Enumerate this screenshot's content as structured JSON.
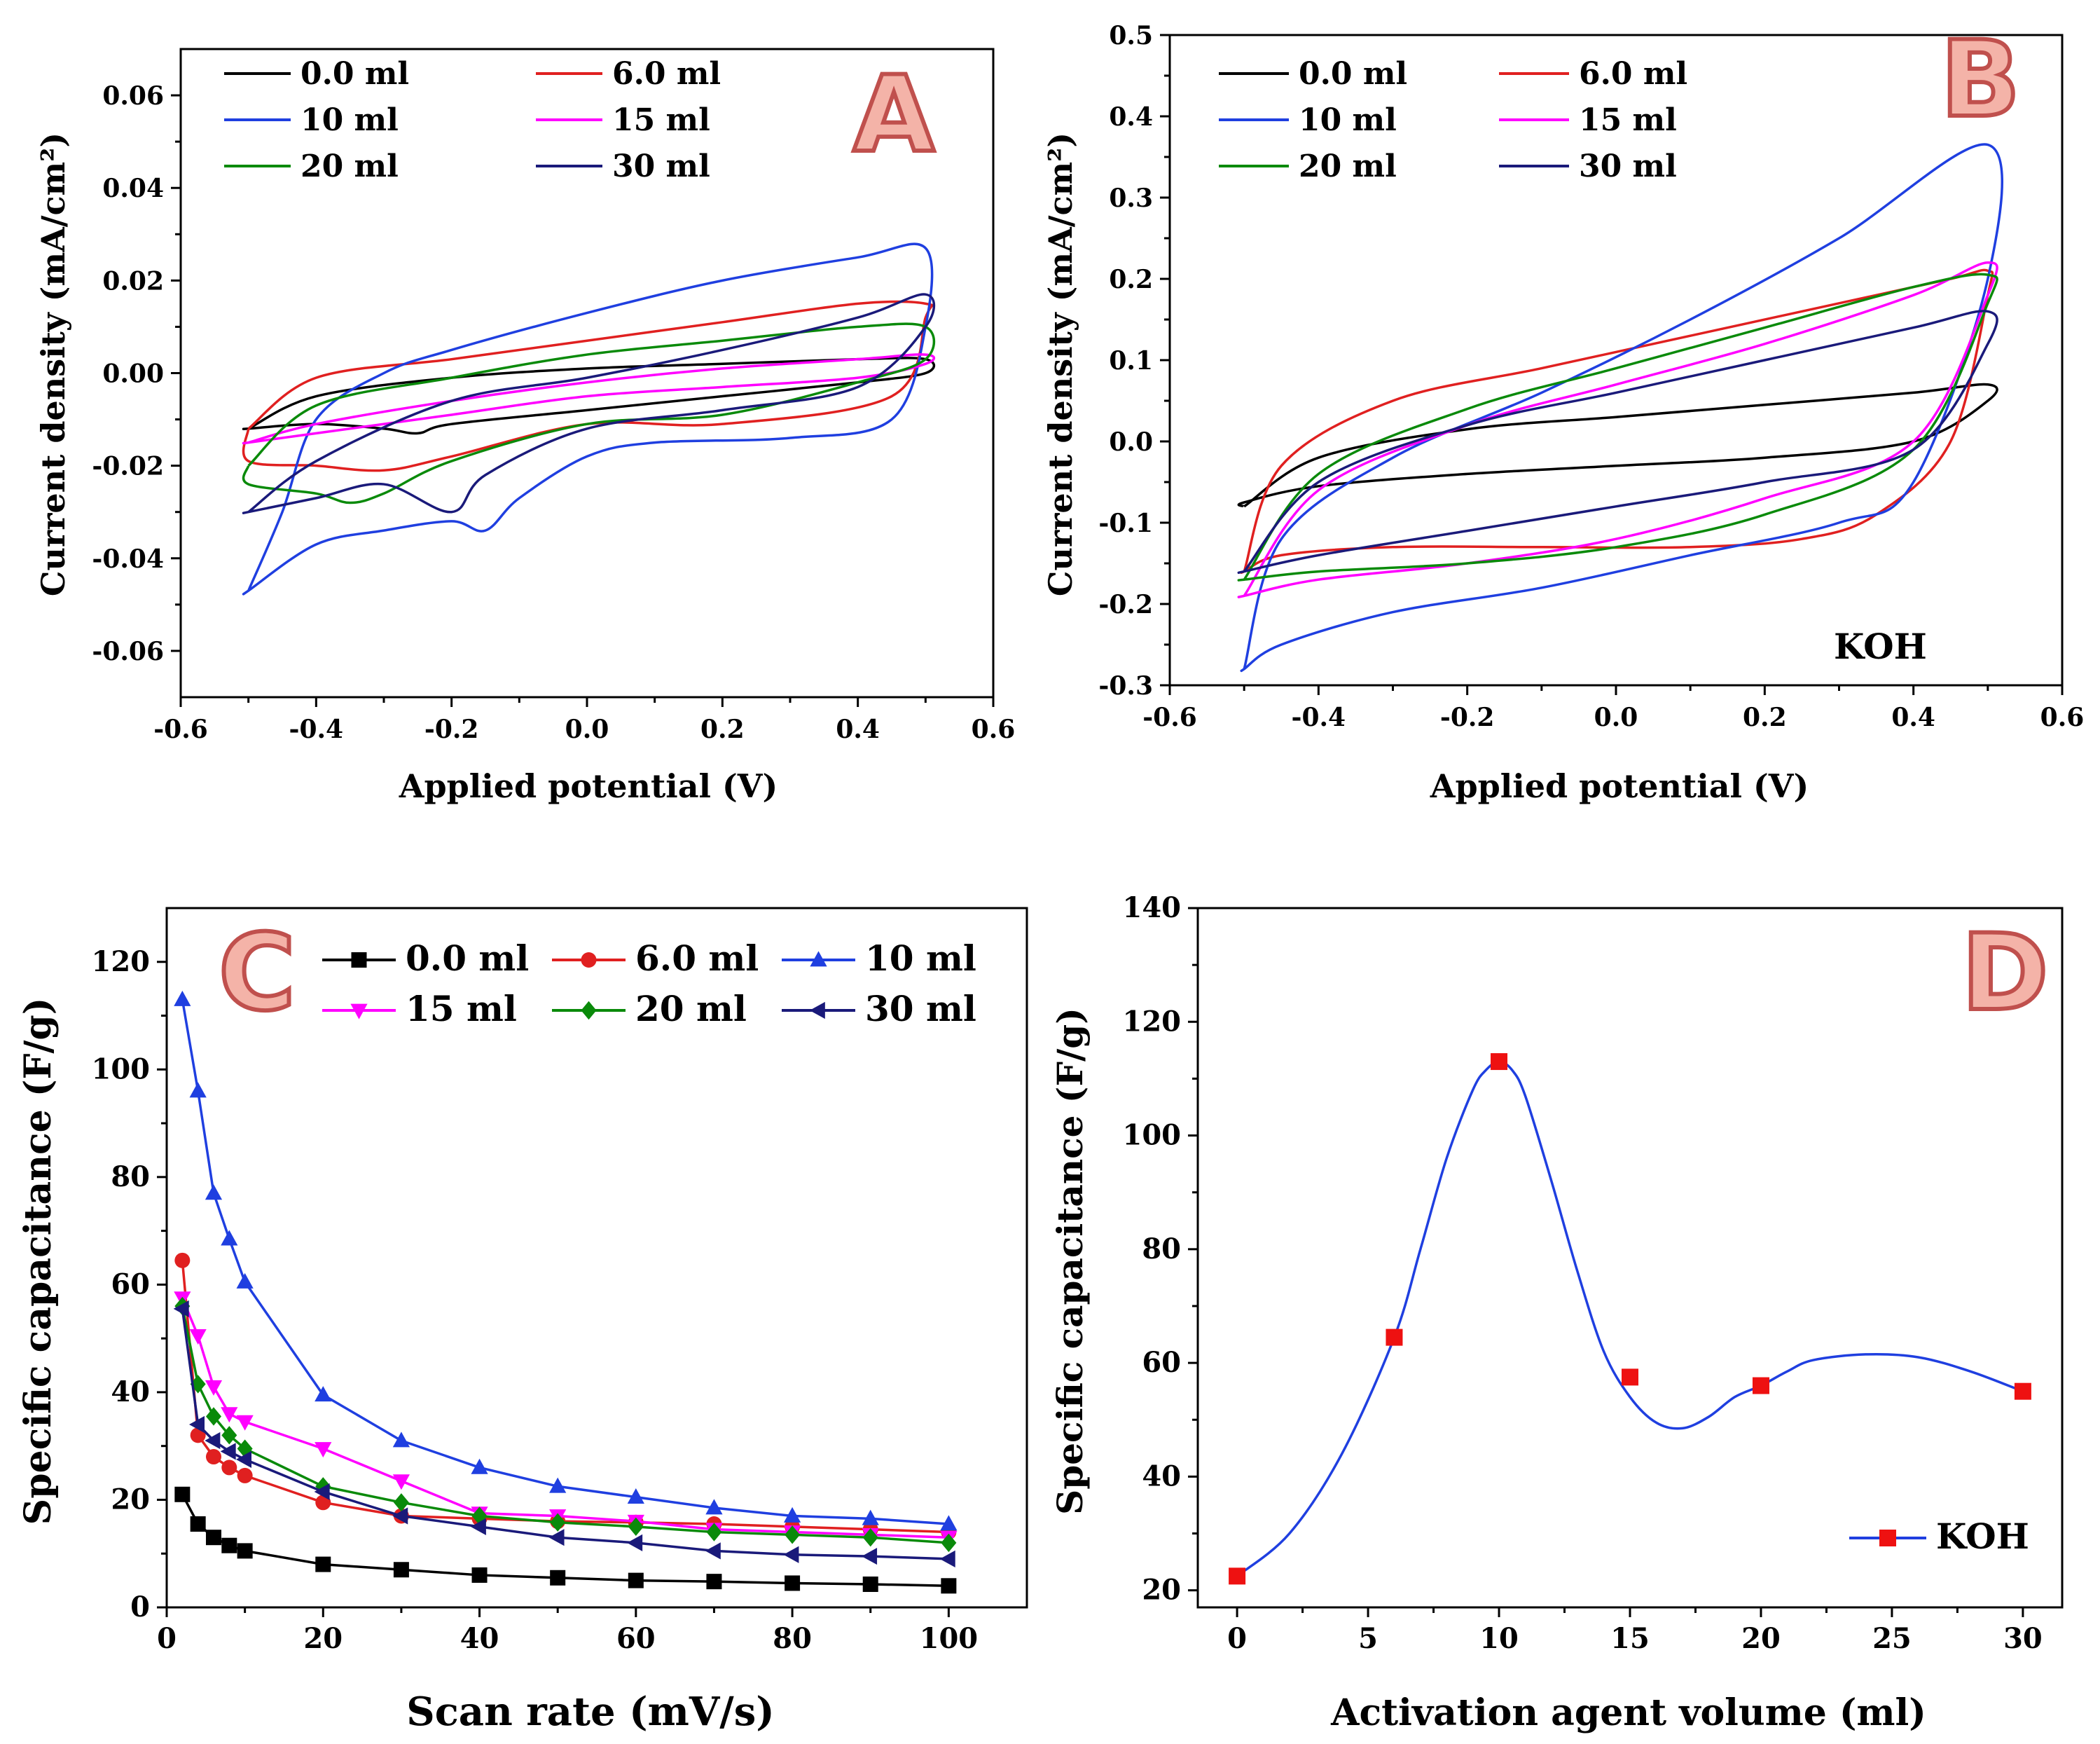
{
  "colors": {
    "0.0 ml": "#000000",
    "6.0 ml": "#e02020",
    "10 ml": "#1f3fe0",
    "15 ml": "#ff00ff",
    "20 ml": "#0a8a0a",
    "30 ml": "#1a1a7a",
    "D_line": "#1f3fe0",
    "D_marker": "#ee1111"
  },
  "chart_data": [
    {
      "id": "A",
      "type": "line",
      "panel_label": "A",
      "xlabel": "Applied potential (V)",
      "ylabel": "Current density (mA/cm²)",
      "xlim": [
        -0.6,
        0.6
      ],
      "ylim": [
        -0.07,
        0.07
      ],
      "xticks": [
        -0.6,
        -0.4,
        -0.2,
        0.0,
        0.2,
        0.4,
        0.6
      ],
      "xtick_labels": [
        "-0.6",
        "-0.4",
        "-0.2",
        "0.0",
        "0.2",
        "0.4",
        "0.6"
      ],
      "yticks": [
        -0.06,
        -0.04,
        -0.02,
        0.0,
        0.02,
        0.04,
        0.06
      ],
      "ytick_labels": [
        "-0.06",
        "-0.04",
        "-0.02",
        "0.00",
        "0.02",
        "0.04",
        "0.06"
      ],
      "legend": [
        "0.0 ml",
        "6.0 ml",
        "10 ml",
        "15 ml",
        "20 ml",
        "30 ml"
      ],
      "series": [
        {
          "name": "0.0 ml",
          "x": [
            -0.5,
            -0.4,
            -0.2,
            0.0,
            0.2,
            0.4,
            0.5,
            0.5,
            0.4,
            0.2,
            0.0,
            -0.2,
            -0.25,
            -0.3,
            -0.4,
            -0.5,
            -0.5
          ],
          "y": [
            -0.012,
            -0.005,
            -0.001,
            0.001,
            0.002,
            0.003,
            0.003,
            0.0,
            -0.002,
            -0.005,
            -0.008,
            -0.011,
            -0.013,
            -0.012,
            -0.011,
            -0.012,
            -0.012
          ]
        },
        {
          "name": "6.0 ml",
          "x": [
            -0.5,
            -0.4,
            -0.2,
            0.0,
            0.2,
            0.4,
            0.5,
            0.5,
            0.45,
            0.2,
            0.0,
            -0.2,
            -0.3,
            -0.4,
            -0.5,
            -0.5
          ],
          "y": [
            -0.012,
            -0.001,
            0.003,
            0.007,
            0.011,
            0.015,
            0.015,
            0.012,
            -0.005,
            -0.011,
            -0.011,
            -0.018,
            -0.021,
            -0.02,
            -0.019,
            -0.012
          ]
        },
        {
          "name": "10 ml",
          "x": [
            -0.5,
            -0.45,
            -0.4,
            -0.3,
            -0.2,
            0.0,
            0.2,
            0.4,
            0.5,
            0.5,
            0.45,
            0.3,
            0.1,
            0.0,
            -0.1,
            -0.15,
            -0.2,
            -0.3,
            -0.4,
            -0.5,
            -0.5
          ],
          "y": [
            -0.047,
            -0.03,
            -0.01,
            0.0,
            0.005,
            0.013,
            0.02,
            0.025,
            0.027,
            0.01,
            -0.01,
            -0.014,
            -0.015,
            -0.018,
            -0.027,
            -0.034,
            -0.032,
            -0.034,
            -0.037,
            -0.047,
            -0.047
          ]
        },
        {
          "name": "15 ml",
          "x": [
            -0.5,
            -0.4,
            -0.2,
            0.0,
            0.2,
            0.4,
            0.5,
            0.5,
            0.4,
            0.2,
            0.0,
            -0.2,
            -0.4,
            -0.5,
            -0.5
          ],
          "y": [
            -0.015,
            -0.011,
            -0.006,
            -0.002,
            0.001,
            0.003,
            0.004,
            0.002,
            -0.001,
            -0.003,
            -0.005,
            -0.009,
            -0.013,
            -0.015,
            -0.015
          ]
        },
        {
          "name": "20 ml",
          "x": [
            -0.5,
            -0.4,
            -0.2,
            0.0,
            0.2,
            0.4,
            0.5,
            0.5,
            0.4,
            0.2,
            0.0,
            -0.2,
            -0.3,
            -0.35,
            -0.4,
            -0.5,
            -0.5
          ],
          "y": [
            -0.02,
            -0.007,
            -0.001,
            0.004,
            0.007,
            0.01,
            0.01,
            0.003,
            -0.002,
            -0.009,
            -0.011,
            -0.019,
            -0.026,
            -0.028,
            -0.026,
            -0.024,
            -0.02
          ]
        },
        {
          "name": "30 ml",
          "x": [
            -0.5,
            -0.4,
            -0.2,
            0.0,
            0.2,
            0.4,
            0.5,
            0.5,
            0.4,
            0.2,
            0.0,
            -0.15,
            -0.2,
            -0.3,
            -0.4,
            -0.5,
            -0.5
          ],
          "y": [
            -0.03,
            -0.019,
            -0.006,
            -0.001,
            0.005,
            0.012,
            0.017,
            0.01,
            -0.003,
            -0.008,
            -0.012,
            -0.022,
            -0.03,
            -0.024,
            -0.027,
            -0.03,
            -0.03
          ]
        }
      ]
    },
    {
      "id": "B",
      "type": "line",
      "panel_label": "B",
      "annotation": "KOH",
      "xlabel": "Applied potential (V)",
      "ylabel": "Current density (mA/cm²)",
      "xlim": [
        -0.6,
        0.6
      ],
      "ylim": [
        -0.3,
        0.5
      ],
      "xticks": [
        -0.6,
        -0.4,
        -0.2,
        0.0,
        0.2,
        0.4,
        0.6
      ],
      "xtick_labels": [
        "-0.6",
        "-0.4",
        "-0.2",
        "0.0",
        "0.2",
        "0.4",
        "0.6"
      ],
      "yticks": [
        -0.3,
        -0.2,
        -0.1,
        0.0,
        0.1,
        0.2,
        0.3,
        0.4,
        0.5
      ],
      "ytick_labels": [
        "-0.3",
        "-0.2",
        "-0.1",
        "0.0",
        "0.1",
        "0.2",
        "0.3",
        "0.4",
        "0.5"
      ],
      "legend": [
        "0.0 ml",
        "6.0 ml",
        "10 ml",
        "15 ml",
        "20 ml",
        "30 ml"
      ],
      "series": [
        {
          "name": "0.0 ml",
          "x": [
            -0.5,
            -0.4,
            -0.2,
            0.0,
            0.2,
            0.4,
            0.5,
            0.5,
            0.4,
            0.2,
            0.0,
            -0.2,
            -0.4,
            -0.5,
            -0.5
          ],
          "y": [
            -0.08,
            -0.02,
            0.015,
            0.03,
            0.045,
            0.06,
            0.07,
            0.05,
            0.0,
            -0.02,
            -0.03,
            -0.04,
            -0.055,
            -0.075,
            -0.08
          ]
        },
        {
          "name": "6.0 ml",
          "x": [
            -0.5,
            -0.45,
            -0.3,
            -0.1,
            0.1,
            0.3,
            0.45,
            0.5,
            0.5,
            0.45,
            0.35,
            0.25,
            0.1,
            -0.1,
            -0.3,
            -0.45,
            -0.5,
            -0.5
          ],
          "y": [
            -0.16,
            -0.03,
            0.05,
            0.09,
            0.13,
            0.17,
            0.2,
            0.21,
            0.18,
            0.0,
            -0.09,
            -0.12,
            -0.13,
            -0.13,
            -0.13,
            -0.14,
            -0.16,
            -0.16
          ]
        },
        {
          "name": "10 ml",
          "x": [
            -0.5,
            -0.45,
            -0.3,
            -0.1,
            0.1,
            0.3,
            0.5,
            0.5,
            0.4,
            0.3,
            0.1,
            -0.1,
            -0.3,
            -0.45,
            -0.5,
            -0.5
          ],
          "y": [
            -0.28,
            -0.12,
            -0.02,
            0.06,
            0.15,
            0.25,
            0.365,
            0.2,
            -0.05,
            -0.1,
            -0.14,
            -0.18,
            -0.21,
            -0.25,
            -0.28,
            -0.28
          ]
        },
        {
          "name": "15 ml",
          "x": [
            -0.5,
            -0.4,
            -0.2,
            0.0,
            0.2,
            0.4,
            0.5,
            0.5,
            0.4,
            0.2,
            0.0,
            -0.2,
            -0.4,
            -0.5,
            -0.5
          ],
          "y": [
            -0.19,
            -0.06,
            0.02,
            0.07,
            0.12,
            0.18,
            0.22,
            0.18,
            0.0,
            -0.07,
            -0.12,
            -0.15,
            -0.17,
            -0.19,
            -0.19
          ]
        },
        {
          "name": "20 ml",
          "x": [
            -0.5,
            -0.4,
            -0.2,
            0.0,
            0.2,
            0.4,
            0.5,
            0.5,
            0.4,
            0.2,
            0.0,
            -0.2,
            -0.4,
            -0.5,
            -0.5
          ],
          "y": [
            -0.17,
            -0.04,
            0.04,
            0.09,
            0.14,
            0.19,
            0.205,
            0.17,
            -0.01,
            -0.09,
            -0.13,
            -0.15,
            -0.16,
            -0.17,
            -0.17
          ]
        },
        {
          "name": "30 ml",
          "x": [
            -0.5,
            -0.4,
            -0.2,
            0.0,
            0.2,
            0.4,
            0.5,
            0.5,
            0.4,
            0.2,
            0.0,
            -0.2,
            -0.4,
            -0.5,
            -0.5
          ],
          "y": [
            -0.16,
            -0.05,
            0.02,
            0.06,
            0.1,
            0.14,
            0.16,
            0.12,
            -0.01,
            -0.05,
            -0.08,
            -0.11,
            -0.14,
            -0.16,
            -0.16
          ]
        }
      ]
    },
    {
      "id": "C",
      "type": "line",
      "panel_label": "C",
      "xlabel": "Scan rate (mV/s)",
      "ylabel": "Specific capacitance (F/g)",
      "xlim": [
        0,
        110
      ],
      "ylim": [
        0,
        130
      ],
      "xticks": [
        0,
        20,
        40,
        60,
        80,
        100
      ],
      "xtick_labels": [
        "0",
        "20",
        "40",
        "60",
        "80",
        "100"
      ],
      "yticks": [
        0,
        20,
        40,
        60,
        80,
        100,
        120
      ],
      "ytick_labels": [
        "0",
        "20",
        "40",
        "60",
        "80",
        "100",
        "120"
      ],
      "legend": [
        "0.0 ml",
        "6.0 ml",
        "10 ml",
        "15 ml",
        "20 ml",
        "30 ml"
      ],
      "x": [
        2,
        4,
        6,
        8,
        10,
        20,
        30,
        40,
        50,
        60,
        70,
        80,
        90,
        100
      ],
      "series": [
        {
          "name": "0.0 ml",
          "marker": "square",
          "values": [
            21,
            15.5,
            13,
            11.5,
            10.5,
            8,
            7,
            6,
            5.5,
            5,
            4.8,
            4.5,
            4.3,
            4
          ]
        },
        {
          "name": "6.0 ml",
          "marker": "circle",
          "values": [
            64.5,
            32,
            28,
            26,
            24.5,
            19.5,
            17,
            16.5,
            16,
            15.8,
            15.5,
            15,
            14.5,
            14
          ]
        },
        {
          "name": "10 ml",
          "marker": "triangle-up",
          "values": [
            113,
            96,
            77,
            68.5,
            60.5,
            39.5,
            31,
            26,
            22.5,
            20.5,
            18.5,
            17,
            16.5,
            15.5
          ]
        },
        {
          "name": "15 ml",
          "marker": "triangle-down",
          "values": [
            57.5,
            50.5,
            41,
            36,
            34.5,
            29.5,
            23.5,
            17.5,
            17,
            16,
            14.5,
            14,
            13.5,
            13
          ]
        },
        {
          "name": "20 ml",
          "marker": "diamond",
          "values": [
            56,
            41.5,
            35.5,
            32,
            29.5,
            22.5,
            19.5,
            17,
            15.8,
            15,
            14,
            13.5,
            13,
            12
          ]
        },
        {
          "name": "30 ml",
          "marker": "triangle-left",
          "values": [
            55.5,
            34,
            31,
            29,
            27.5,
            21.5,
            17,
            15,
            13,
            12,
            10.5,
            9.8,
            9.5,
            9
          ]
        }
      ]
    },
    {
      "id": "D",
      "type": "scatter",
      "panel_label": "D",
      "xlabel": "Activation agent volume (ml)",
      "ylabel": "Specific capacitance (F/g)",
      "xlim": [
        -1.5,
        31.5
      ],
      "ylim": [
        17,
        140
      ],
      "xticks": [
        0,
        5,
        10,
        15,
        20,
        25,
        30
      ],
      "xtick_labels": [
        "0",
        "5",
        "10",
        "15",
        "20",
        "25",
        "30"
      ],
      "yticks": [
        20,
        40,
        60,
        80,
        100,
        120,
        140
      ],
      "ytick_labels": [
        "20",
        "40",
        "60",
        "80",
        "100",
        "120",
        "140"
      ],
      "legend": [
        "KOH"
      ],
      "series": [
        {
          "name": "KOH",
          "x": [
            0,
            6,
            10,
            15,
            20,
            30
          ],
          "values": [
            22.5,
            64.5,
            113,
            57.5,
            56,
            55
          ]
        }
      ],
      "fit_curve": {
        "x": [
          0,
          2,
          4,
          6,
          7,
          8,
          9,
          9.5,
          10,
          10.5,
          11,
          12,
          13,
          14,
          15,
          16,
          17,
          18,
          19,
          20,
          21,
          22,
          24,
          26,
          28,
          30
        ],
        "y": [
          22.5,
          30,
          44,
          64.5,
          80,
          96,
          108,
          111.5,
          113,
          111.5,
          107,
          92,
          76,
          62,
          54,
          49.5,
          48.5,
          50.5,
          54,
          56,
          58.5,
          60.5,
          61.5,
          61,
          58.5,
          55
        ]
      }
    }
  ]
}
